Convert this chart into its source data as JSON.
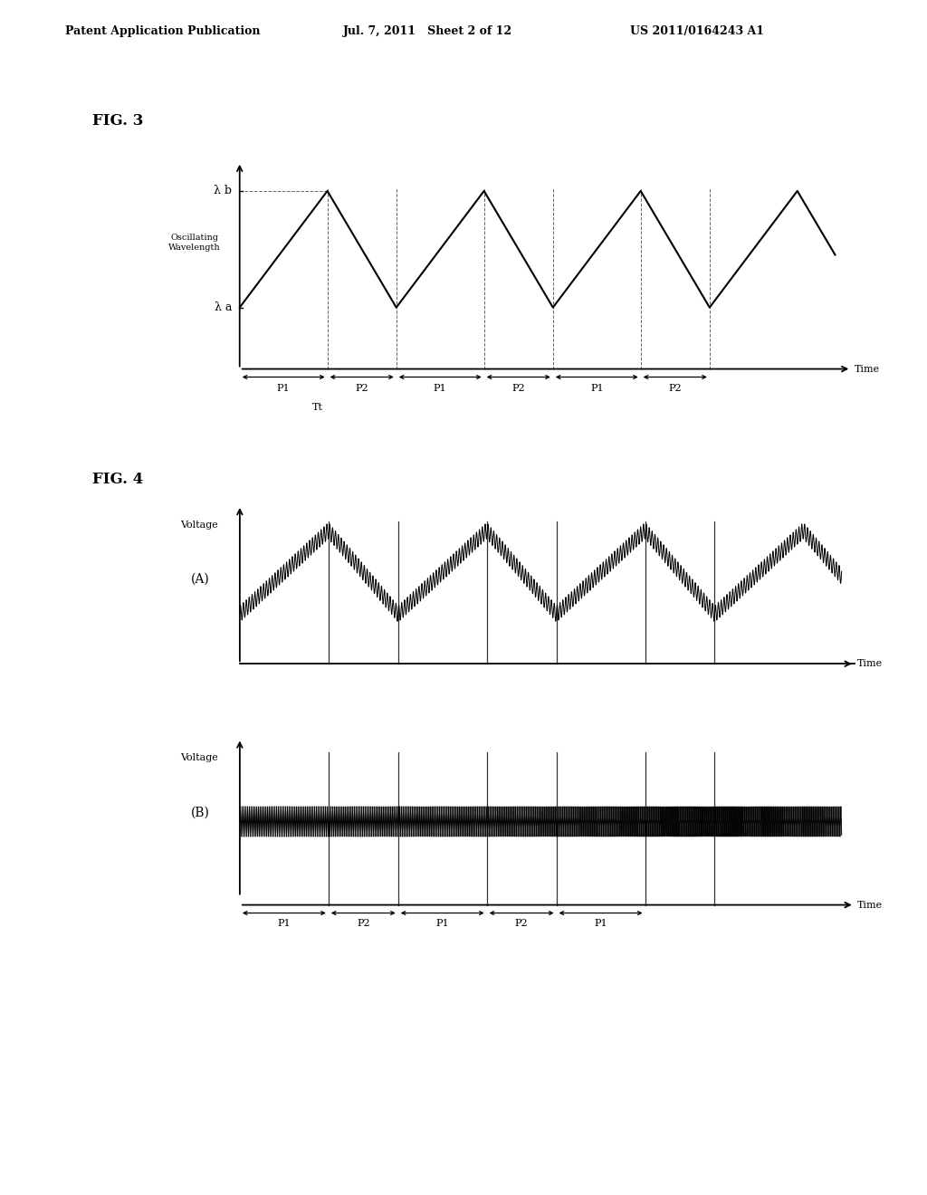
{
  "header_left": "Patent Application Publication",
  "header_mid": "Jul. 7, 2011   Sheet 2 of 12",
  "header_right": "US 2011/0164243 A1",
  "fig3_label": "FIG. 3",
  "fig4_label": "FIG. 4",
  "fig3_ylabel": "Oscillating\nWavelength",
  "fig3_xlabel": "Time",
  "fig3_lambda_b": "λ b",
  "fig3_lambda_a": "λ a",
  "fig4_ylabel": "Voltage",
  "fig4_xlabel": "Time",
  "fig4_label_A": "(A)",
  "fig4_label_B": "(B)",
  "period_label_P1": "P1",
  "period_label_P2": "P2",
  "period_label_Tt": "Tt",
  "bg_color": "#ffffff",
  "line_color": "#000000",
  "lam_b": 1.0,
  "lam_a": 0.28,
  "p1": 1.4,
  "p2": 1.1,
  "n_cycles_shown": 3
}
